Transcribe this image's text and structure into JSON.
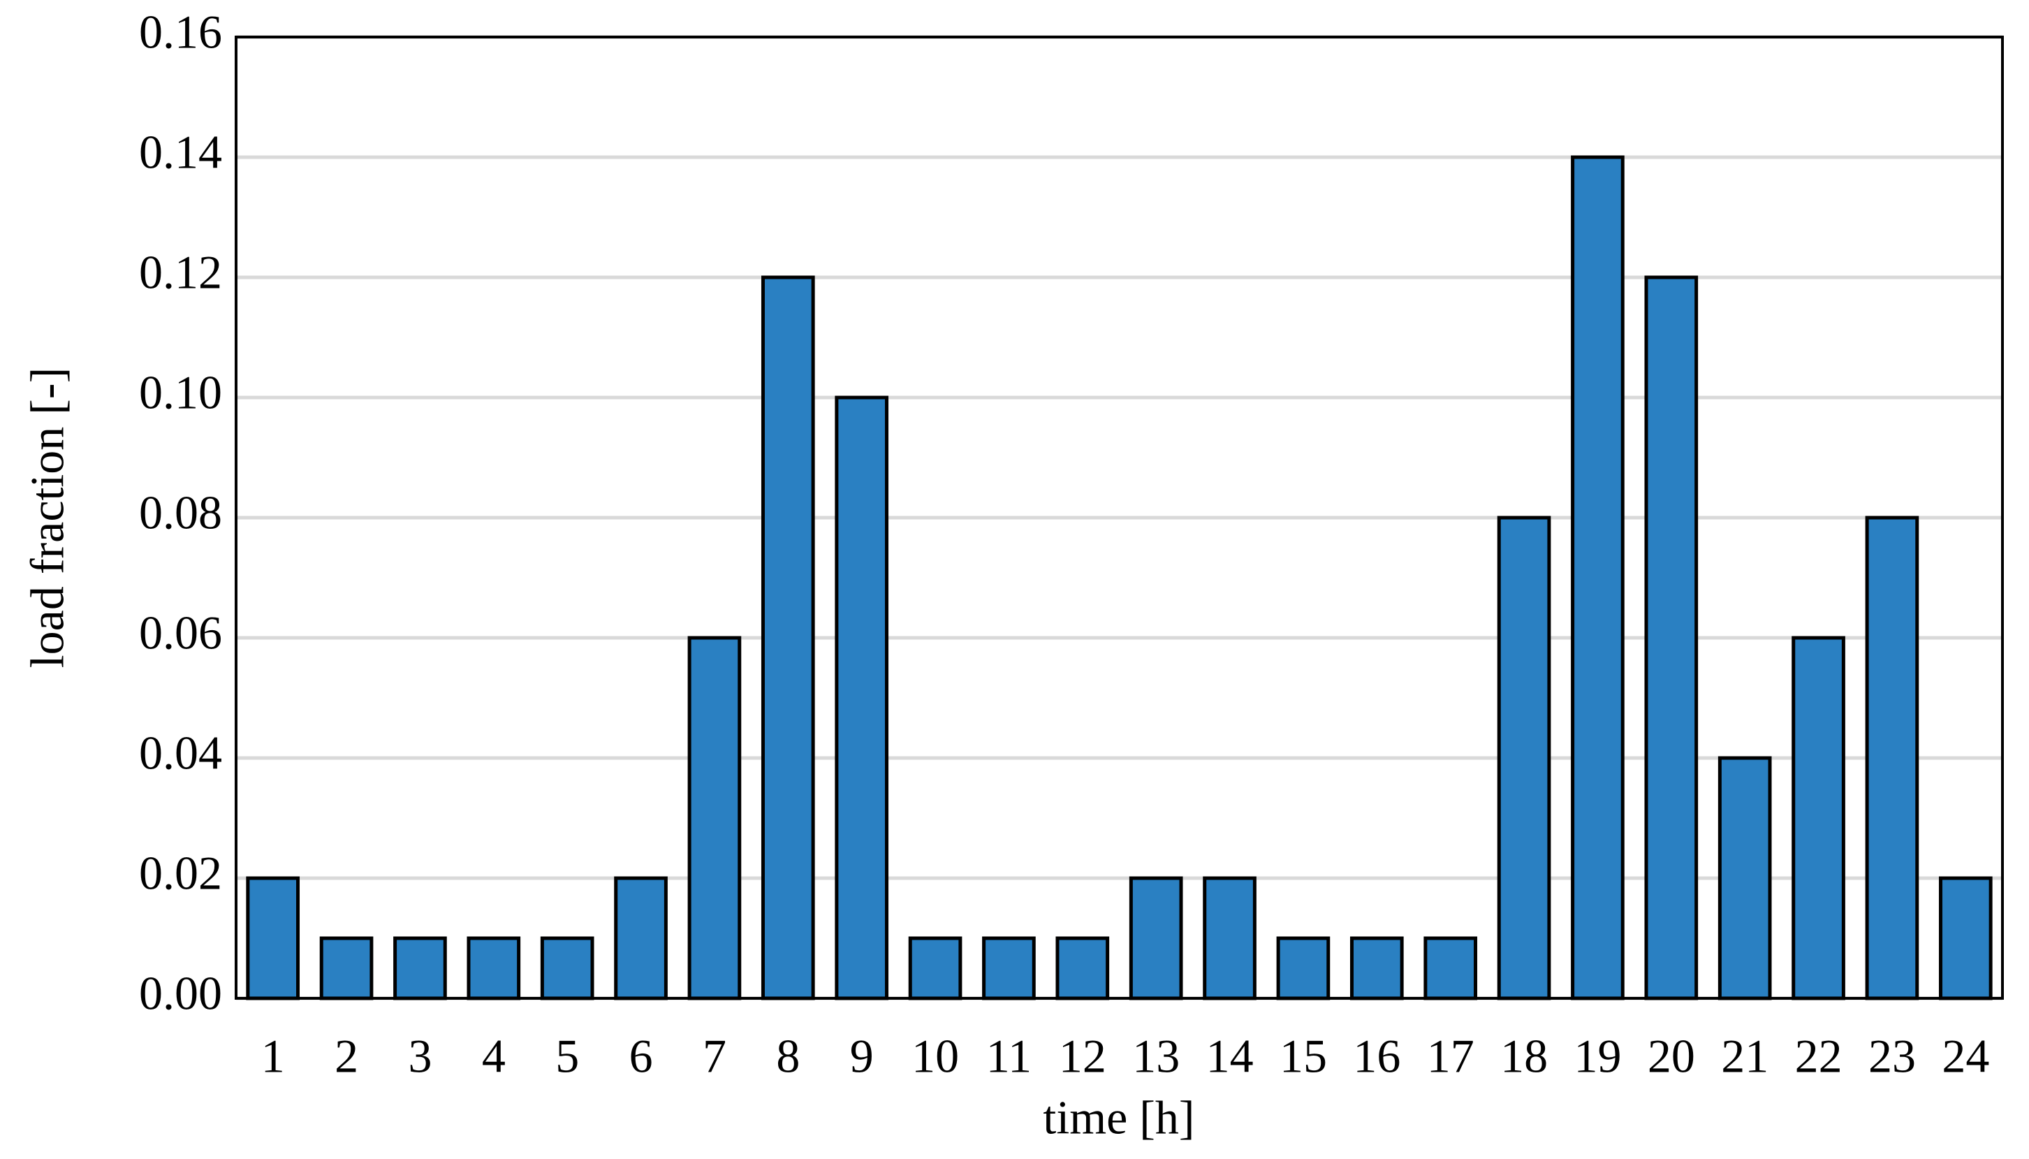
{
  "chart_data": {
    "type": "bar",
    "x_label": "time [h]",
    "y_label": "load fraction [-]",
    "categories": [
      "1",
      "2",
      "3",
      "4",
      "5",
      "6",
      "7",
      "8",
      "9",
      "10",
      "11",
      "12",
      "13",
      "14",
      "15",
      "16",
      "17",
      "18",
      "19",
      "20",
      "21",
      "22",
      "23",
      "24"
    ],
    "values": [
      0.02,
      0.01,
      0.01,
      0.01,
      0.01,
      0.02,
      0.06,
      0.12,
      0.1,
      0.01,
      0.01,
      0.01,
      0.02,
      0.02,
      0.01,
      0.01,
      0.01,
      0.08,
      0.14,
      0.12,
      0.04,
      0.06,
      0.08,
      0.02
    ],
    "color": "#2a80c2",
    "ylim": [
      0,
      0.16
    ],
    "yticks": [
      {
        "value": 0,
        "label": "0.00"
      },
      {
        "value": 0.02,
        "label": "0.02"
      },
      {
        "value": 0.04,
        "label": "0.04"
      },
      {
        "value": 0.06,
        "label": "0.06"
      },
      {
        "value": 0.08,
        "label": "0.08"
      },
      {
        "value": 0.1,
        "label": "0.10"
      },
      {
        "value": 0.12,
        "label": "0.12"
      },
      {
        "value": 0.14,
        "label": "0.14"
      },
      {
        "value": 0.16,
        "label": "0.16"
      }
    ],
    "grid": true
  }
}
